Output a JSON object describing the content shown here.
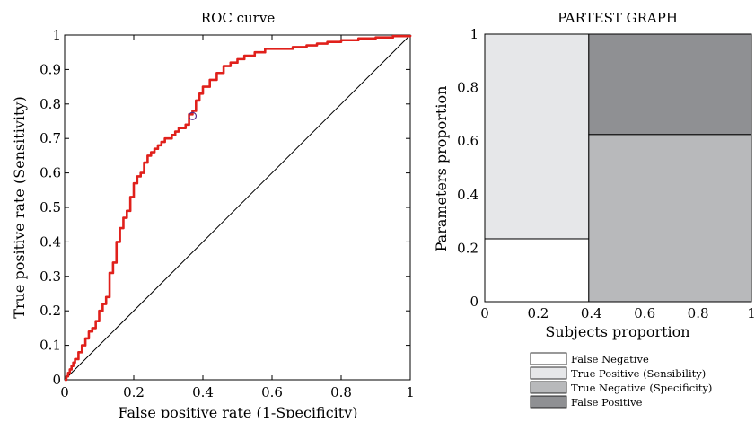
{
  "chart_data": [
    {
      "type": "line",
      "title": "ROC curve",
      "xlabel": "False positive rate (1-Specificity)",
      "ylabel": "True positive rate (Sensitivity)",
      "xlim": [
        0,
        1
      ],
      "ylim": [
        0,
        1
      ],
      "xticks": [
        "0",
        "0.2",
        "0.4",
        "0.6",
        "0.8",
        "1"
      ],
      "yticks": [
        "0",
        "0.1",
        "0.2",
        "0.3",
        "0.4",
        "0.5",
        "0.6",
        "0.7",
        "0.8",
        "0.9",
        "1"
      ],
      "grid": false,
      "series": [
        {
          "color": "#e0201b",
          "x": [
            0,
            0.005,
            0.01,
            0.015,
            0.02,
            0.025,
            0.03,
            0.04,
            0.05,
            0.06,
            0.07,
            0.08,
            0.09,
            0.1,
            0.11,
            0.12,
            0.13,
            0.14,
            0.15,
            0.16,
            0.17,
            0.18,
            0.19,
            0.2,
            0.21,
            0.22,
            0.23,
            0.24,
            0.25,
            0.26,
            0.27,
            0.28,
            0.29,
            0.3,
            0.31,
            0.32,
            0.33,
            0.34,
            0.35,
            0.36,
            0.37,
            0.38,
            0.39,
            0.4,
            0.42,
            0.44,
            0.46,
            0.48,
            0.5,
            0.52,
            0.55,
            0.58,
            0.6,
            0.63,
            0.66,
            0.7,
            0.73,
            0.76,
            0.8,
            0.85,
            0.9,
            0.95,
            1.0
          ],
          "y": [
            0,
            0.01,
            0.02,
            0.03,
            0.04,
            0.05,
            0.06,
            0.08,
            0.1,
            0.12,
            0.14,
            0.15,
            0.17,
            0.2,
            0.22,
            0.24,
            0.31,
            0.34,
            0.4,
            0.44,
            0.47,
            0.49,
            0.53,
            0.57,
            0.59,
            0.6,
            0.63,
            0.65,
            0.66,
            0.67,
            0.68,
            0.69,
            0.7,
            0.7,
            0.71,
            0.72,
            0.73,
            0.73,
            0.74,
            0.77,
            0.78,
            0.81,
            0.83,
            0.85,
            0.87,
            0.89,
            0.91,
            0.92,
            0.93,
            0.94,
            0.95,
            0.96,
            0.96,
            0.96,
            0.965,
            0.97,
            0.975,
            0.98,
            0.985,
            0.99,
            0.993,
            0.997,
            1.0
          ]
        },
        {
          "color": "#000000",
          "x": [
            0,
            1
          ],
          "y": [
            0,
            1
          ]
        }
      ],
      "marker": {
        "x": 0.37,
        "y": 0.765,
        "color": "#5a2c8a"
      }
    },
    {
      "type": "area",
      "title": "PARTEST GRAPH",
      "xlabel": "Subjects proportion",
      "ylabel": "Parameters proportion",
      "xlim": [
        0,
        1
      ],
      "ylim": [
        0,
        1
      ],
      "xticks": [
        "0",
        "0.2",
        "0.4",
        "0.6",
        "0.8",
        "1"
      ],
      "yticks": [
        "0",
        "0.2",
        "0.4",
        "0.6",
        "0.8",
        "1"
      ],
      "regions": [
        {
          "name": "False Negative",
          "x0": 0,
          "x1": 0.39,
          "y0": 0,
          "y1": 0.235,
          "color": "#ffffff"
        },
        {
          "name": "True Positive (Sensibility)",
          "x0": 0,
          "x1": 0.39,
          "y0": 0.235,
          "y1": 1,
          "color": "#e6e7e9"
        },
        {
          "name": "True Negative (Specificity)",
          "x0": 0.39,
          "x1": 1,
          "y0": 0,
          "y1": 0.625,
          "color": "#b8b9bb"
        },
        {
          "name": "False Positive",
          "x0": 0.39,
          "x1": 1,
          "y0": 0.625,
          "y1": 1,
          "color": "#8f9093"
        }
      ],
      "legend": [
        {
          "label": "False Negative",
          "color": "#ffffff"
        },
        {
          "label": "True Positive (Sensibility)",
          "color": "#e6e7e9"
        },
        {
          "label": "True Negative (Specificity)",
          "color": "#b8b9bb"
        },
        {
          "label": "False Positive",
          "color": "#8f9093"
        }
      ],
      "legend_position": "bottom"
    }
  ]
}
